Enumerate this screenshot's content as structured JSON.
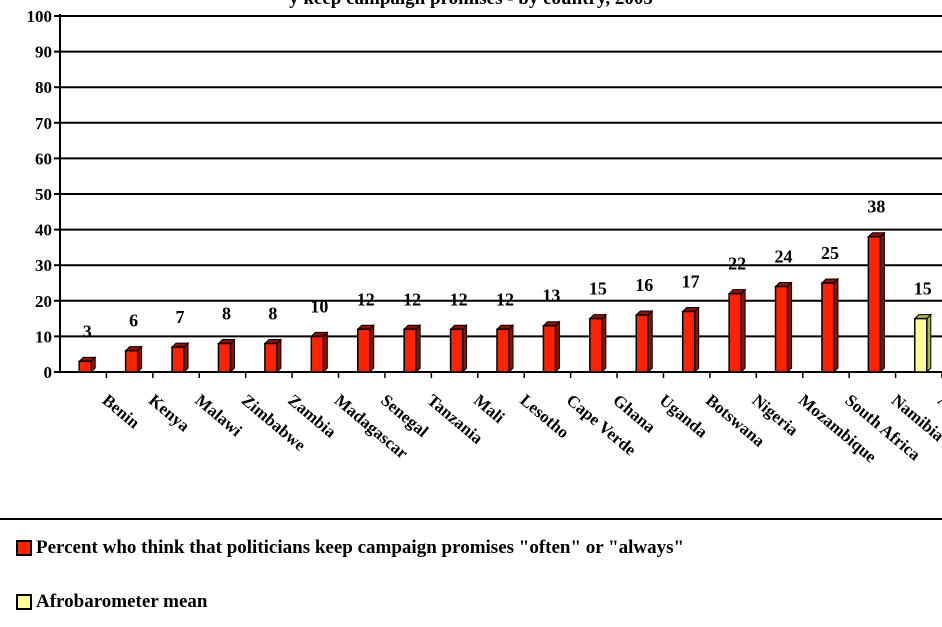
{
  "chart_data": {
    "type": "bar",
    "title": "y  keep campaign promises - by country, 2005",
    "categories": [
      "Benin",
      "Kenya",
      "Malawi",
      "Zimbabwe",
      "Zambia",
      "Madagascar",
      "Senegal",
      "Tanzania",
      "Mali",
      "Lesotho",
      "Cape Verde",
      "Ghana",
      "Uganda",
      "Botswana",
      "Nigeria",
      "Mozambique",
      "South Africa",
      "Namibia",
      "AB mean"
    ],
    "series": [
      {
        "name": "Percent who think that politicians keep campaign promises \"often\" or \"always\"",
        "color": "#ff2200",
        "values": [
          3,
          6,
          7,
          8,
          8,
          10,
          12,
          12,
          12,
          12,
          13,
          15,
          16,
          17,
          22,
          24,
          25,
          38,
          null
        ]
      },
      {
        "name": "Afrobarometer mean",
        "color": "#ffff99",
        "values": [
          null,
          null,
          null,
          null,
          null,
          null,
          null,
          null,
          null,
          null,
          null,
          null,
          null,
          null,
          null,
          null,
          null,
          null,
          15
        ]
      }
    ],
    "data_labels": [
      "3",
      "6",
      "7",
      "8",
      "8",
      "10",
      "12",
      "12",
      "12",
      "12",
      "13",
      "15",
      "16",
      "17",
      "22",
      "24",
      "25",
      "38",
      "15"
    ],
    "yticks": [
      "0",
      "10",
      "20",
      "30",
      "40",
      "50",
      "60",
      "70",
      "80",
      "90",
      "100"
    ],
    "ylim": [
      0,
      100
    ],
    "grid": true,
    "legend_position": "bottom"
  }
}
